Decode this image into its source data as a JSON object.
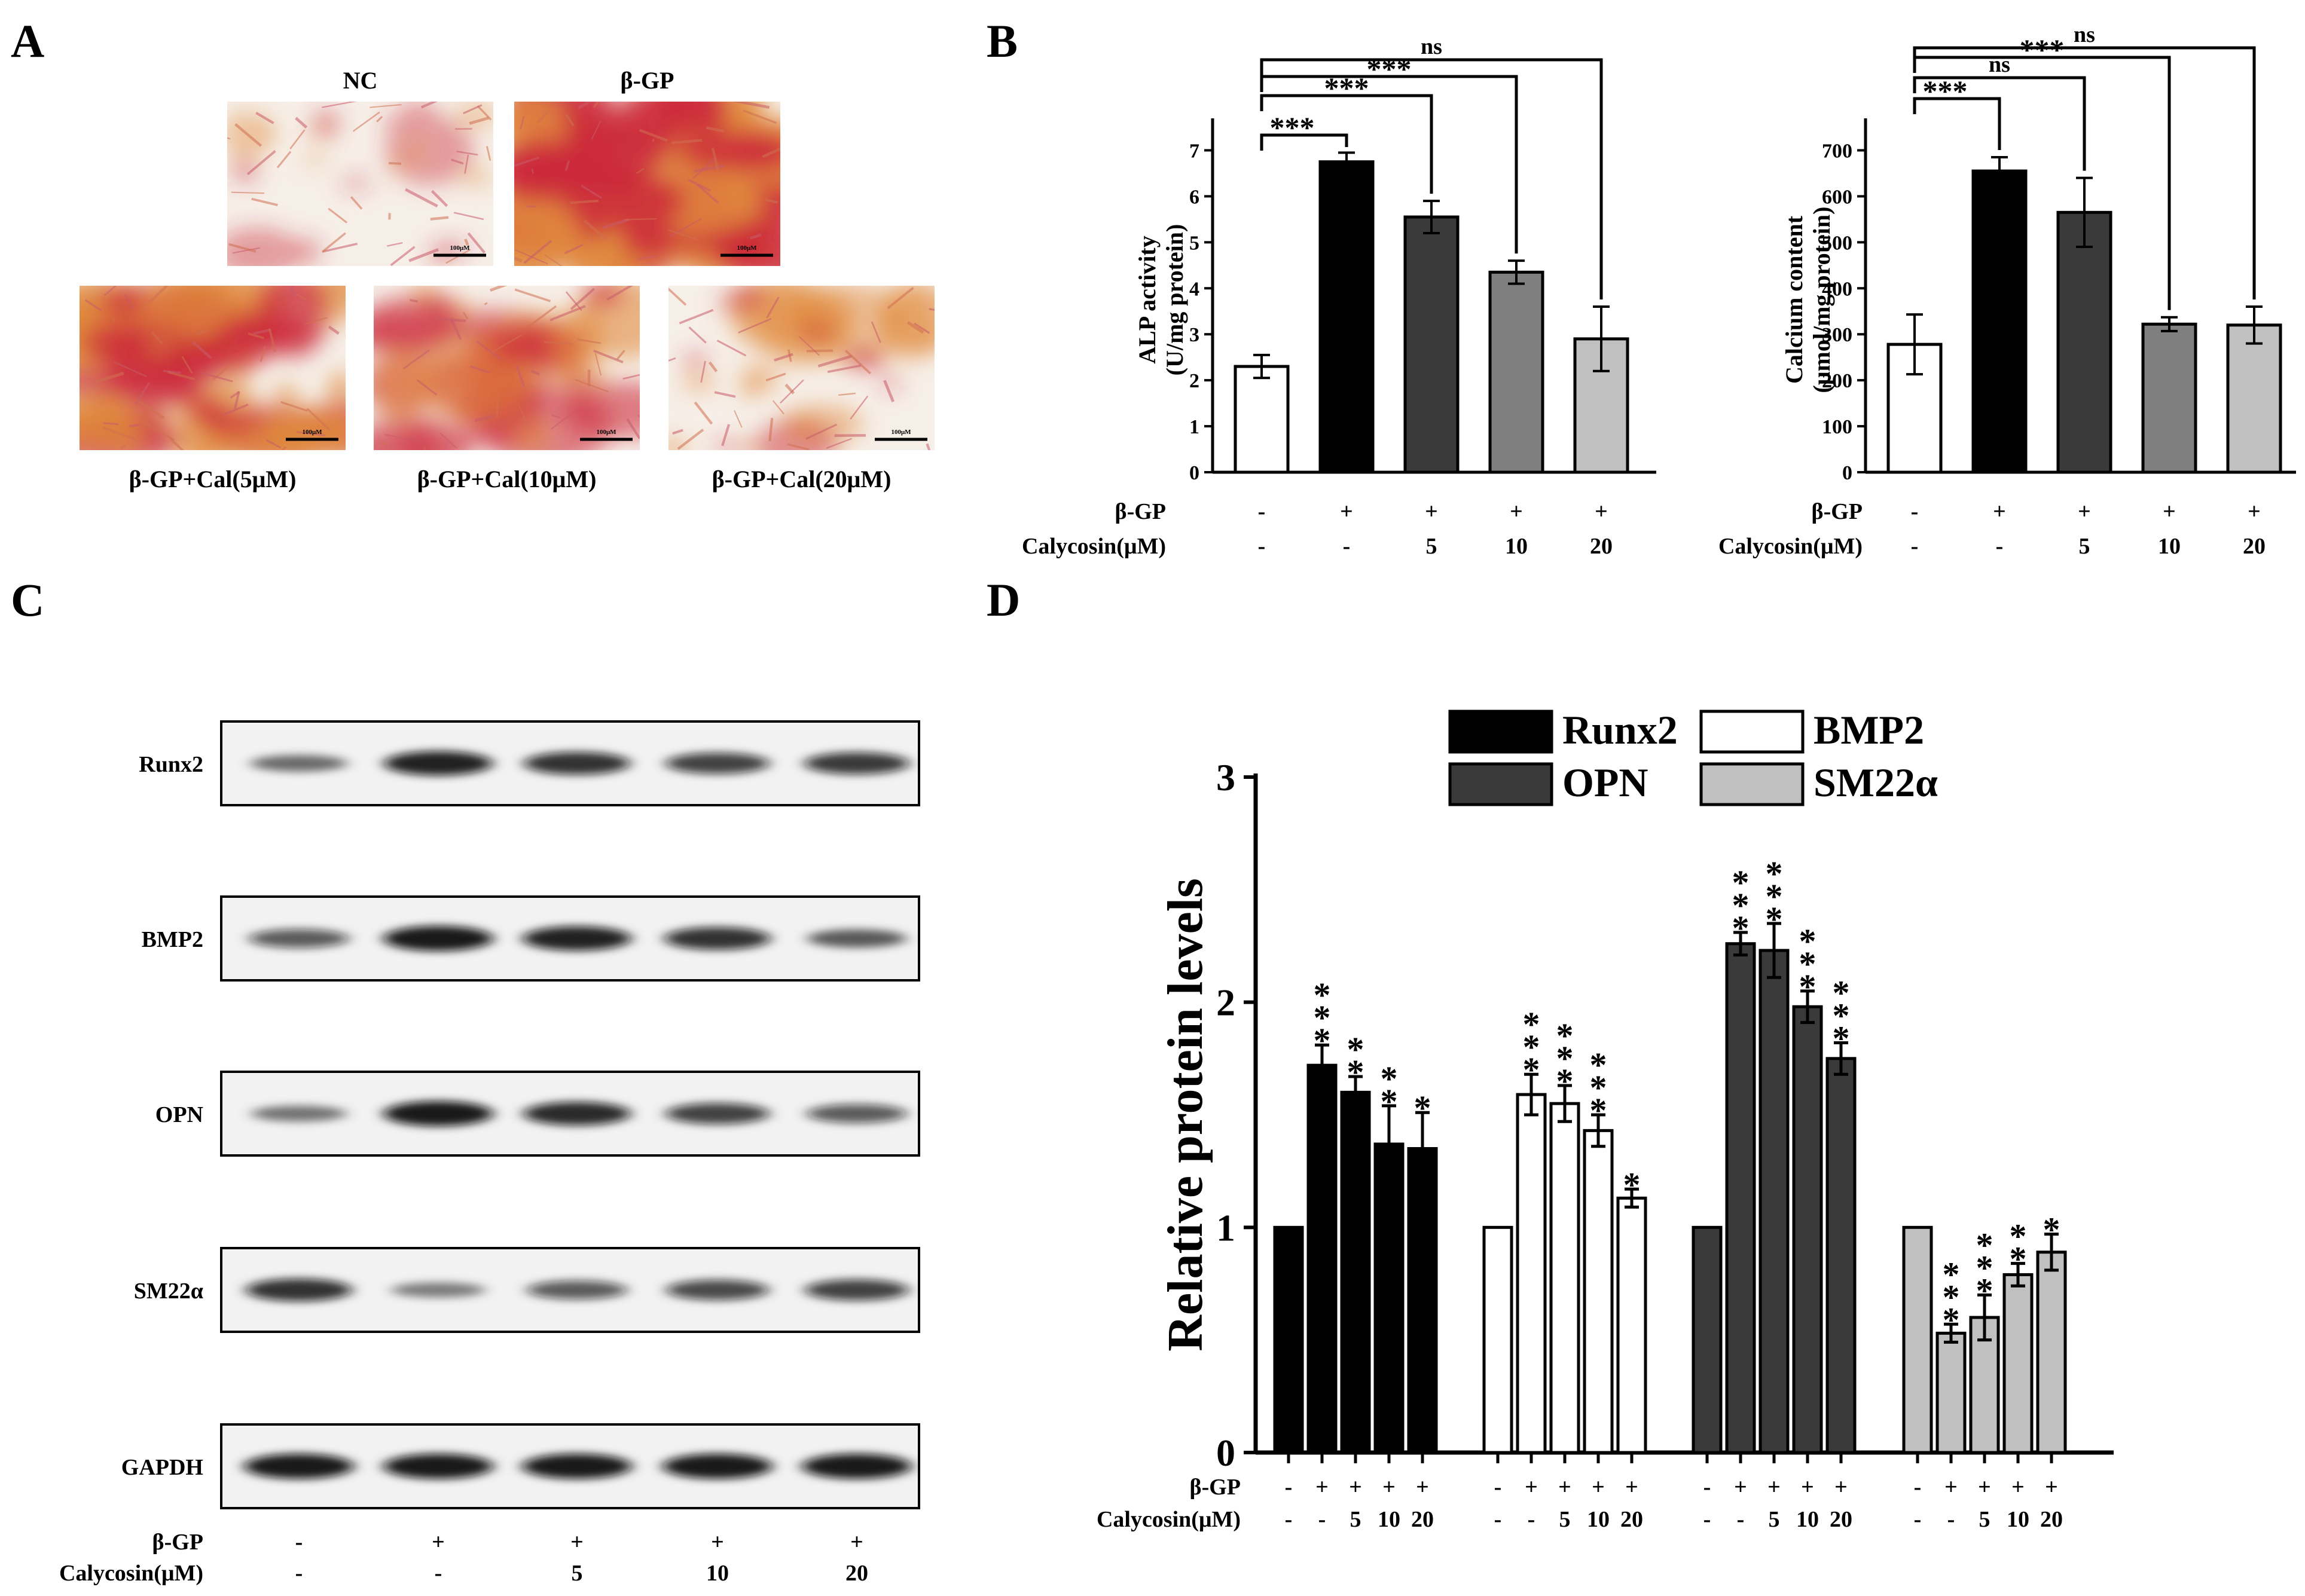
{
  "panel_labels": {
    "a": "A",
    "b": "B",
    "c": "C",
    "d": "D"
  },
  "colors": {
    "stain_red": "#cc2a3a",
    "stain_orange": "#e08a3c",
    "background_cream": "#f6efe8",
    "bar_black": "#000000",
    "bar_darkgray": "#3a3a3a",
    "bar_gray": "#7f7f7f",
    "bar_lightgray": "#c0c0c0",
    "bar_white": "#ffffff"
  },
  "panel_a": {
    "images": [
      {
        "label": "NC",
        "scale_label": "100μM",
        "stain": 0.15
      },
      {
        "label": "β-GP",
        "scale_label": "100μM",
        "stain": 0.9
      },
      {
        "label": "β-GP+Cal(5μM)",
        "scale_label": "100μM",
        "stain": 0.75
      },
      {
        "label": "β-GP+Cal(10μM)",
        "scale_label": "100μM",
        "stain": 0.45
      },
      {
        "label": "β-GP+Cal(20μM)",
        "scale_label": "100μM",
        "stain": 0.25
      }
    ]
  },
  "treatment": {
    "row1_label": "β-GP",
    "row2_label": "Calycosin(μM)",
    "beta_gp": [
      "-",
      "+",
      "+",
      "+",
      "+"
    ],
    "calycosin": [
      "-",
      "-",
      "5",
      "10",
      "20"
    ]
  },
  "chart_data": [
    {
      "id": "alp",
      "type": "bar",
      "ylabel_line1": "ALP activity",
      "ylabel_line2": "(U/mg protein)",
      "categories": [
        "NC",
        "β-GP",
        "β-GP+Cal 5",
        "β-GP+Cal 10",
        "β-GP+Cal 20"
      ],
      "values": [
        2.3,
        6.75,
        5.55,
        4.35,
        2.9
      ],
      "errors": [
        0.25,
        0.2,
        0.35,
        0.25,
        0.7
      ],
      "ylim": [
        0,
        7.5
      ],
      "yticks": [
        "0",
        "1",
        "2",
        "3",
        "4",
        "5",
        "6",
        "7"
      ],
      "bar_colors": [
        "#ffffff",
        "#000000",
        "#3a3a3a",
        "#7f7f7f",
        "#c0c0c0"
      ],
      "comparisons": [
        {
          "to": 1,
          "label": "***"
        },
        {
          "to": 2,
          "label": "***"
        },
        {
          "to": 3,
          "label": "***"
        },
        {
          "to": 4,
          "label": "ns"
        }
      ]
    },
    {
      "id": "calcium",
      "type": "bar",
      "ylabel_line1": "Calcium content",
      "ylabel_line2": "(μmol/mg protein)",
      "categories": [
        "NC",
        "β-GP",
        "β-GP+Cal 5",
        "β-GP+Cal 10",
        "β-GP+Cal 20"
      ],
      "values": [
        278,
        655,
        565,
        322,
        320
      ],
      "errors": [
        65,
        30,
        75,
        15,
        40
      ],
      "ylim": [
        0,
        750
      ],
      "yticks": [
        "0",
        "100",
        "200",
        "300",
        "400",
        "500",
        "600",
        "700"
      ],
      "bar_colors": [
        "#ffffff",
        "#000000",
        "#3a3a3a",
        "#7f7f7f",
        "#c0c0c0"
      ],
      "comparisons": [
        {
          "to": 1,
          "label": "***"
        },
        {
          "to": 2,
          "label": "ns"
        },
        {
          "to": 3,
          "label": "***"
        },
        {
          "to": 4,
          "label": "ns"
        }
      ]
    },
    {
      "id": "western",
      "type": "bar",
      "ylabel": "Relative protein levels",
      "ylim": [
        0,
        3
      ],
      "yticks": [
        "0",
        "1",
        "2",
        "3"
      ],
      "groups": [
        "-/-",
        "+/-",
        "+/5",
        "+/10",
        "+/20"
      ],
      "series": [
        {
          "name": "Runx2",
          "color": "#000000",
          "values": [
            1.0,
            1.72,
            1.6,
            1.37,
            1.35
          ],
          "errors": [
            0,
            0.09,
            0.07,
            0.17,
            0.16
          ],
          "stars": [
            "",
            "***",
            "**",
            "**",
            "*"
          ]
        },
        {
          "name": "BMP2",
          "color": "#ffffff",
          "values": [
            1.0,
            1.59,
            1.55,
            1.43,
            1.13
          ],
          "errors": [
            0,
            0.09,
            0.08,
            0.07,
            0.04
          ],
          "stars": [
            "",
            "***",
            "***",
            "***",
            "*"
          ]
        },
        {
          "name": "OPN",
          "color": "#3a3a3a",
          "values": [
            1.0,
            2.26,
            2.23,
            1.98,
            1.75
          ],
          "errors": [
            0,
            0.05,
            0.12,
            0.07,
            0.07
          ],
          "stars": [
            "",
            "***",
            "***",
            "***",
            "***"
          ]
        },
        {
          "name": "SM22α",
          "color": "#c0c0c0",
          "values": [
            1.0,
            0.53,
            0.6,
            0.79,
            0.89
          ],
          "errors": [
            0,
            0.04,
            0.1,
            0.05,
            0.08
          ],
          "stars": [
            "",
            "***",
            "***",
            "**",
            "*"
          ]
        }
      ]
    }
  ],
  "panel_c": {
    "blots": [
      {
        "label": "Runx2",
        "intensities": [
          0.45,
          0.95,
          0.85,
          0.75,
          0.8
        ]
      },
      {
        "label": "BMP2",
        "intensities": [
          0.6,
          1.0,
          0.95,
          0.85,
          0.55
        ]
      },
      {
        "label": "OPN",
        "intensities": [
          0.4,
          1.0,
          0.9,
          0.75,
          0.6
        ]
      },
      {
        "label": "SM22α",
        "intensities": [
          0.85,
          0.35,
          0.6,
          0.7,
          0.75
        ]
      },
      {
        "label": "GAPDH",
        "intensities": [
          1.0,
          1.0,
          1.0,
          1.0,
          1.0
        ]
      }
    ]
  }
}
